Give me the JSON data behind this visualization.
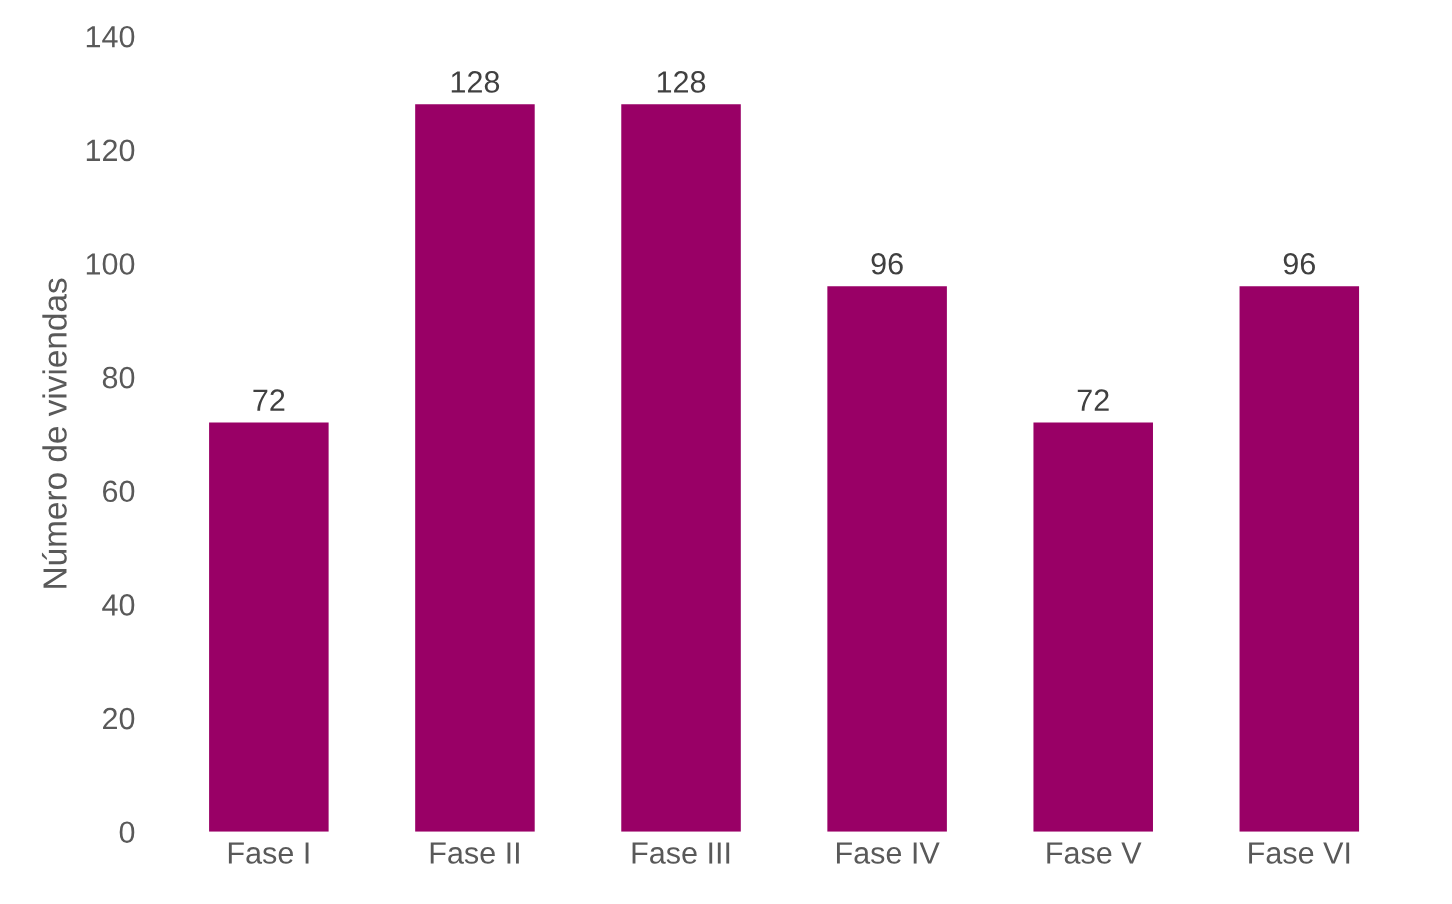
{
  "chart_data": {
    "type": "bar",
    "ylabel": "Número de viviendas",
    "categories": [
      "Fase I",
      "Fase II",
      "Fase III",
      "Fase IV",
      "Fase V",
      "Fase VI"
    ],
    "values": [
      72,
      128,
      128,
      96,
      72,
      96
    ],
    "color": "#990066",
    "ylim": [
      0,
      140
    ],
    "yticks": [
      0,
      20,
      40,
      60,
      80,
      100,
      120,
      140
    ],
    "grid": false,
    "data_labels": true
  }
}
